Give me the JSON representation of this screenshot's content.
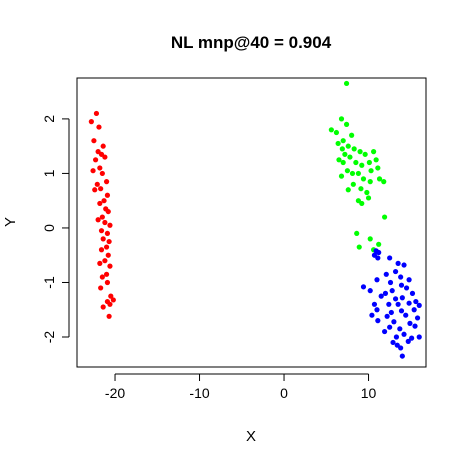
{
  "chart_data": {
    "type": "scatter",
    "title": "NL mnp@40 = 0.904",
    "xlabel": "X",
    "ylabel": "Y",
    "xlim": [
      -24.5,
      16.8
    ],
    "ylim": [
      -2.55,
      2.75
    ],
    "xticks": [
      -20,
      -10,
      0,
      10
    ],
    "yticks": [
      -2,
      -1,
      0,
      1,
      2
    ],
    "grid": false,
    "legend": "none",
    "series": [
      {
        "color": "#ff0000",
        "points": [
          [
            -22.2,
            2.1
          ],
          [
            -22.8,
            1.95
          ],
          [
            -21.9,
            1.85
          ],
          [
            -22.5,
            1.6
          ],
          [
            -21.4,
            1.5
          ],
          [
            -22.0,
            1.4
          ],
          [
            -21.6,
            1.35
          ],
          [
            -22.3,
            1.25
          ],
          [
            -21.2,
            1.3
          ],
          [
            -21.8,
            1.1
          ],
          [
            -22.6,
            1.05
          ],
          [
            -21.5,
            1.0
          ],
          [
            -22.1,
            0.8
          ],
          [
            -21.0,
            0.85
          ],
          [
            -22.4,
            0.7
          ],
          [
            -21.7,
            0.72
          ],
          [
            -20.9,
            0.6
          ],
          [
            -21.3,
            0.5
          ],
          [
            -21.8,
            0.45
          ],
          [
            -21.1,
            0.35
          ],
          [
            -20.8,
            0.3
          ],
          [
            -21.5,
            0.2
          ],
          [
            -22.0,
            0.15
          ],
          [
            -21.2,
            0.1
          ],
          [
            -20.6,
            0.05
          ],
          [
            -21.6,
            -0.05
          ],
          [
            -20.9,
            -0.1
          ],
          [
            -21.4,
            -0.2
          ],
          [
            -20.7,
            -0.25
          ],
          [
            -21.0,
            -0.35
          ],
          [
            -21.6,
            -0.4
          ],
          [
            -20.8,
            -0.5
          ],
          [
            -21.2,
            -0.6
          ],
          [
            -21.8,
            -0.65
          ],
          [
            -20.6,
            -0.7
          ],
          [
            -21.0,
            -0.85
          ],
          [
            -21.5,
            -0.9
          ],
          [
            -20.9,
            -1.0
          ],
          [
            -21.7,
            -1.1
          ],
          [
            -20.5,
            -1.25
          ],
          [
            -20.2,
            -1.32
          ],
          [
            -20.9,
            -1.35
          ],
          [
            -20.6,
            -1.4
          ],
          [
            -21.4,
            -1.45
          ],
          [
            -20.7,
            -1.62
          ]
        ]
      },
      {
        "color": "#00ff00",
        "points": [
          [
            7.4,
            2.65
          ],
          [
            5.6,
            1.8
          ],
          [
            6.2,
            1.75
          ],
          [
            6.8,
            2.0
          ],
          [
            7.4,
            1.9
          ],
          [
            8.0,
            1.7
          ],
          [
            7.0,
            1.6
          ],
          [
            6.4,
            1.55
          ],
          [
            6.9,
            1.45
          ],
          [
            7.6,
            1.5
          ],
          [
            8.3,
            1.45
          ],
          [
            7.2,
            1.35
          ],
          [
            7.8,
            1.3
          ],
          [
            9.0,
            1.4
          ],
          [
            9.6,
            1.35
          ],
          [
            10.6,
            1.4
          ],
          [
            6.5,
            1.25
          ],
          [
            7.0,
            1.2
          ],
          [
            8.5,
            1.2
          ],
          [
            9.2,
            1.15
          ],
          [
            10.1,
            1.2
          ],
          [
            10.9,
            1.25
          ],
          [
            7.5,
            1.05
          ],
          [
            8.1,
            1.0
          ],
          [
            8.8,
            1.0
          ],
          [
            10.3,
            1.05
          ],
          [
            11.1,
            1.1
          ],
          [
            6.8,
            0.95
          ],
          [
            9.4,
            0.9
          ],
          [
            10.2,
            0.85
          ],
          [
            11.3,
            0.9
          ],
          [
            8.2,
            0.8
          ],
          [
            11.8,
            0.85
          ],
          [
            7.6,
            0.7
          ],
          [
            9.1,
            0.72
          ],
          [
            9.8,
            0.65
          ],
          [
            8.8,
            0.5
          ],
          [
            10.0,
            0.55
          ],
          [
            9.2,
            0.45
          ],
          [
            11.9,
            0.2
          ],
          [
            8.6,
            -0.1
          ],
          [
            10.2,
            -0.2
          ],
          [
            11.2,
            -0.3
          ],
          [
            8.9,
            -0.35
          ],
          [
            10.6,
            -0.4
          ]
        ]
      },
      {
        "color": "#0000ff",
        "points": [
          [
            10.9,
            -0.42
          ],
          [
            11.2,
            -0.45
          ],
          [
            10.7,
            -0.5
          ],
          [
            11.1,
            -0.55
          ],
          [
            12.5,
            -0.55
          ],
          [
            13.5,
            -0.65
          ],
          [
            14.2,
            -0.68
          ],
          [
            13.2,
            -0.8
          ],
          [
            12.1,
            -0.85
          ],
          [
            11.0,
            -0.95
          ],
          [
            13.8,
            -0.9
          ],
          [
            14.8,
            -0.95
          ],
          [
            12.6,
            -1.0
          ],
          [
            13.9,
            -1.05
          ],
          [
            9.4,
            -1.08
          ],
          [
            10.2,
            -1.15
          ],
          [
            12.0,
            -1.2
          ],
          [
            12.8,
            -1.15
          ],
          [
            14.5,
            -1.1
          ],
          [
            15.2,
            -1.2
          ],
          [
            11.5,
            -1.25
          ],
          [
            13.2,
            -1.3
          ],
          [
            14.0,
            -1.28
          ],
          [
            15.6,
            -1.35
          ],
          [
            10.7,
            -1.4
          ],
          [
            12.4,
            -1.4
          ],
          [
            13.5,
            -1.4
          ],
          [
            14.8,
            -1.38
          ],
          [
            16.0,
            -1.42
          ],
          [
            11.0,
            -1.5
          ],
          [
            12.7,
            -1.55
          ],
          [
            13.9,
            -1.52
          ],
          [
            15.4,
            -1.5
          ],
          [
            10.4,
            -1.6
          ],
          [
            12.2,
            -1.62
          ],
          [
            14.4,
            -1.6
          ],
          [
            15.8,
            -1.65
          ],
          [
            11.1,
            -1.7
          ],
          [
            13.0,
            -1.72
          ],
          [
            14.9,
            -1.75
          ],
          [
            12.5,
            -1.82
          ],
          [
            13.7,
            -1.85
          ],
          [
            15.5,
            -1.8
          ],
          [
            11.9,
            -1.9
          ],
          [
            14.2,
            -1.95
          ],
          [
            13.3,
            -2.0
          ],
          [
            15.1,
            -2.02
          ],
          [
            16.0,
            -2.0
          ],
          [
            12.9,
            -2.1
          ],
          [
            14.7,
            -2.08
          ],
          [
            13.4,
            -2.15
          ],
          [
            13.8,
            -2.2
          ],
          [
            14.0,
            -2.35
          ]
        ]
      }
    ]
  }
}
